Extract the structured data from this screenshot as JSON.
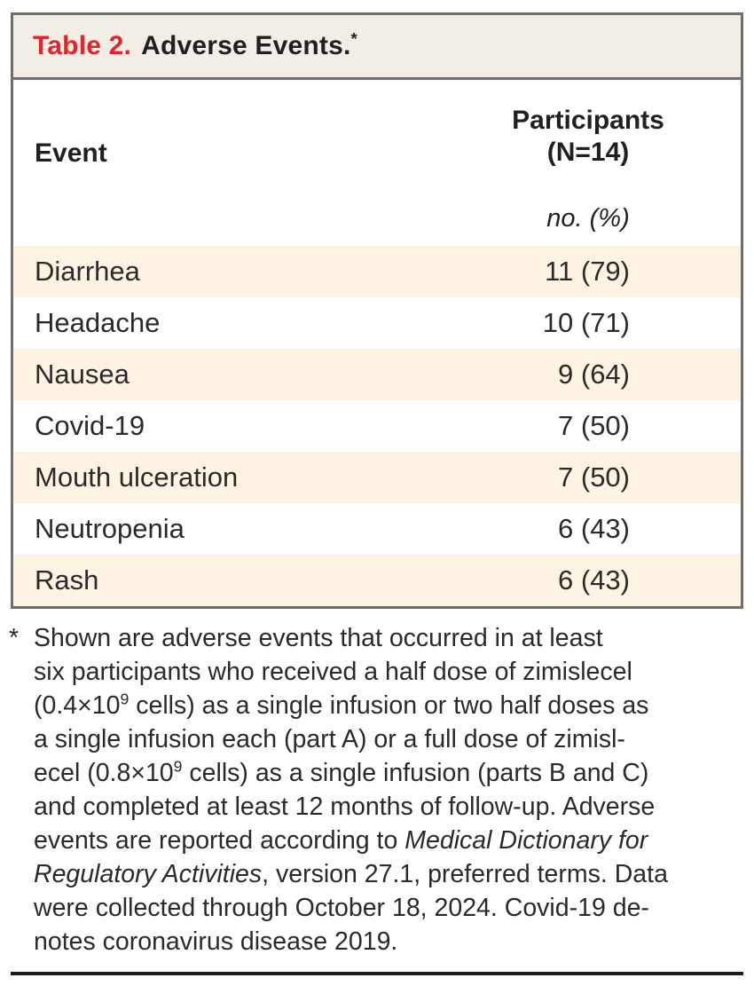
{
  "table": {
    "label": "Table 2.",
    "title": "Adverse Events.",
    "footnote_marker": "*",
    "columns": {
      "event": "Event",
      "participants_line1": "Participants",
      "participants_line2": "(N=14)",
      "units": "no. (%)"
    },
    "rows": [
      {
        "event": "Diarrhea",
        "value": "11 (79)"
      },
      {
        "event": "Headache",
        "value": "10 (71)"
      },
      {
        "event": "Nausea",
        "value": "9 (64)"
      },
      {
        "event": "Covid-19",
        "value": "7 (50)"
      },
      {
        "event": "Mouth ulceration",
        "value": "7 (50)"
      },
      {
        "event": "Neutropenia",
        "value": "6 (43)"
      },
      {
        "event": "Rash",
        "value": "6 (43)"
      }
    ]
  },
  "footnote": {
    "marker": "*",
    "lines": [
      [
        {
          "t": "Shown are adverse events that occurred in at least"
        }
      ],
      [
        {
          "t": "six participants who received a half dose of zimislecel"
        }
      ],
      [
        {
          "t": "(0.4×10"
        },
        {
          "t": "9",
          "s": true
        },
        {
          "t": " cells) as a single infusion or two half doses as"
        }
      ],
      [
        {
          "t": "a single infusion each (part A) or a full dose of zimisl-"
        }
      ],
      [
        {
          "t": "ecel (0.8×10"
        },
        {
          "t": "9",
          "s": true
        },
        {
          "t": " cells) as a single infusion (parts B and C)"
        }
      ],
      [
        {
          "t": "and completed at least 12 months of follow-up. Adverse"
        }
      ],
      [
        {
          "t": "events are reported according to "
        },
        {
          "t": "Medical Dictionary for",
          "i": true
        }
      ],
      [
        {
          "t": "Regulatory Activities",
          "i": true
        },
        {
          "t": ", version 27.1, preferred terms. Data"
        }
      ],
      [
        {
          "t": "were collected through October 18, 2024. Covid-19 de-"
        }
      ],
      [
        {
          "t": "notes coronavirus disease 2019."
        }
      ]
    ]
  },
  "colors": {
    "accent_red": "#e4232b",
    "title_bar_bg": "#f2ede5",
    "row_stripe": "#fdf3e3",
    "frame_border": "#6e6e71",
    "text": "#231f20",
    "bottom_rule": "#1b1b1b"
  }
}
